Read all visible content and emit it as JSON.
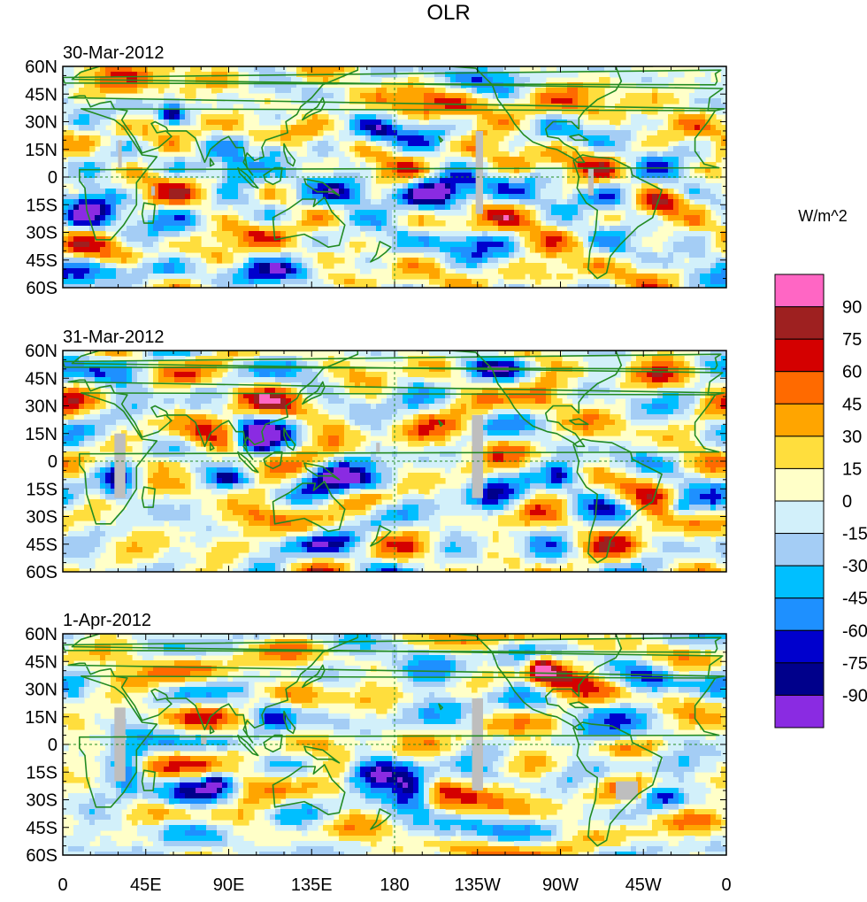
{
  "title": "OLR",
  "units_label": "W/m^2",
  "panels": [
    {
      "date": "30-Mar-2012",
      "seed": 11,
      "features": [
        {
          "lon": 205,
          "lat": -10,
          "value": -95,
          "rx": 18,
          "ry": 9
        },
        {
          "lon": 155,
          "lat": -8,
          "value": -80,
          "rx": 16,
          "ry": 7
        },
        {
          "lon": 95,
          "lat": 5,
          "value": -65,
          "rx": 14,
          "ry": 12
        },
        {
          "lon": 115,
          "lat": 15,
          "value": -80,
          "rx": 8,
          "ry": 6
        },
        {
          "lon": 60,
          "lat": 35,
          "value": -75,
          "rx": 6,
          "ry": 6
        },
        {
          "lon": 15,
          "lat": -15,
          "value": -60,
          "rx": 14,
          "ry": 14
        },
        {
          "lon": 300,
          "lat": -10,
          "value": -45,
          "rx": 12,
          "ry": 8
        },
        {
          "lon": 80,
          "lat": 10,
          "value": 35,
          "rx": 30,
          "ry": 6
        },
        {
          "lon": 230,
          "lat": 40,
          "value": 30,
          "rx": 30,
          "ry": 6
        },
        {
          "lon": 130,
          "lat": 40,
          "value": 30,
          "rx": 20,
          "ry": 6
        },
        {
          "lon": 250,
          "lat": -35,
          "value": 30,
          "rx": 20,
          "ry": 6
        },
        {
          "lon": 100,
          "lat": -30,
          "value": 30,
          "rx": 22,
          "ry": 6
        },
        {
          "lon": 325,
          "lat": -15,
          "value": 45,
          "rx": 10,
          "ry": 6
        },
        {
          "lon": 280,
          "lat": 30,
          "value": 30,
          "rx": 15,
          "ry": 10
        },
        {
          "lon": 40,
          "lat": 45,
          "value": 35,
          "rx": 18,
          "ry": 8
        },
        {
          "lon": 340,
          "lat": 45,
          "value": 40,
          "rx": 15,
          "ry": 7
        },
        {
          "lon": 170,
          "lat": 25,
          "value": -45,
          "rx": 10,
          "ry": 6
        },
        {
          "lon": 215,
          "lat": -35,
          "value": -45,
          "rx": 18,
          "ry": 6
        },
        {
          "lon": 130,
          "lat": -50,
          "value": -45,
          "rx": 25,
          "ry": 5
        },
        {
          "lon": 40,
          "lat": -50,
          "value": -45,
          "rx": 25,
          "ry": 5
        }
      ]
    },
    {
      "date": "31-Mar-2012",
      "seed": 23,
      "features": [
        {
          "lon": 150,
          "lat": -8,
          "value": -80,
          "rx": 14,
          "ry": 7
        },
        {
          "lon": 170,
          "lat": -12,
          "value": -75,
          "rx": 14,
          "ry": 6
        },
        {
          "lon": 105,
          "lat": 12,
          "value": -90,
          "rx": 10,
          "ry": 8
        },
        {
          "lon": 90,
          "lat": -10,
          "value": -60,
          "rx": 12,
          "ry": 5
        },
        {
          "lon": 30,
          "lat": -12,
          "value": -70,
          "rx": 10,
          "ry": 12
        },
        {
          "lon": 270,
          "lat": -8,
          "value": -70,
          "rx": 10,
          "ry": 7
        },
        {
          "lon": 235,
          "lat": -20,
          "value": -55,
          "rx": 15,
          "ry": 8
        },
        {
          "lon": 60,
          "lat": 0,
          "value": 35,
          "rx": 25,
          "ry": 5
        },
        {
          "lon": 95,
          "lat": 32,
          "value": 40,
          "rx": 25,
          "ry": 8
        },
        {
          "lon": 260,
          "lat": 35,
          "value": 45,
          "rx": 12,
          "ry": 10
        },
        {
          "lon": 100,
          "lat": -30,
          "value": 30,
          "rx": 25,
          "ry": 8
        },
        {
          "lon": 320,
          "lat": -35,
          "value": 35,
          "rx": 25,
          "ry": 8
        },
        {
          "lon": 200,
          "lat": 10,
          "value": 25,
          "rx": 25,
          "ry": 10
        },
        {
          "lon": 330,
          "lat": 45,
          "value": 35,
          "rx": 20,
          "ry": 6
        },
        {
          "lon": 140,
          "lat": -45,
          "value": -50,
          "rx": 20,
          "ry": 5
        },
        {
          "lon": 30,
          "lat": 50,
          "value": -40,
          "rx": 20,
          "ry": 7
        },
        {
          "lon": 230,
          "lat": 50,
          "value": -35,
          "rx": 20,
          "ry": 6
        },
        {
          "lon": 335,
          "lat": -25,
          "value": -60,
          "rx": 8,
          "ry": 6
        }
      ]
    },
    {
      "date": "1-Apr-2012",
      "seed": 37,
      "features": [
        {
          "lon": 260,
          "lat": 42,
          "value": 80,
          "rx": 8,
          "ry": 7
        },
        {
          "lon": 265,
          "lat": 38,
          "value": 55,
          "rx": 14,
          "ry": 10
        },
        {
          "lon": 170,
          "lat": -15,
          "value": -80,
          "rx": 18,
          "ry": 8
        },
        {
          "lon": 190,
          "lat": -25,
          "value": -80,
          "rx": 10,
          "ry": 10
        },
        {
          "lon": 35,
          "lat": -15,
          "value": -70,
          "rx": 10,
          "ry": 12
        },
        {
          "lon": 85,
          "lat": -20,
          "value": -65,
          "rx": 8,
          "ry": 6
        },
        {
          "lon": 115,
          "lat": 15,
          "value": -65,
          "rx": 10,
          "ry": 8
        },
        {
          "lon": 325,
          "lat": -28,
          "value": -70,
          "rx": 10,
          "ry": 5
        },
        {
          "lon": 210,
          "lat": 35,
          "value": -40,
          "rx": 30,
          "ry": 10
        },
        {
          "lon": 60,
          "lat": 40,
          "value": 35,
          "rx": 20,
          "ry": 8
        },
        {
          "lon": 130,
          "lat": 30,
          "value": 30,
          "rx": 20,
          "ry": 8
        },
        {
          "lon": 150,
          "lat": -12,
          "value": 40,
          "rx": 12,
          "ry": 6
        },
        {
          "lon": 100,
          "lat": -5,
          "value": 30,
          "rx": 20,
          "ry": 5
        },
        {
          "lon": 240,
          "lat": -25,
          "value": 30,
          "rx": 25,
          "ry": 8
        },
        {
          "lon": 330,
          "lat": -40,
          "value": 35,
          "rx": 20,
          "ry": 6
        },
        {
          "lon": 320,
          "lat": 35,
          "value": -45,
          "rx": 15,
          "ry": 8
        },
        {
          "lon": 60,
          "lat": -45,
          "value": -50,
          "rx": 25,
          "ry": 6
        },
        {
          "lon": 300,
          "lat": 5,
          "value": -45,
          "rx": 20,
          "ry": 5
        }
      ]
    }
  ],
  "lat_labels": [
    "60N",
    "45N",
    "30N",
    "15N",
    "0",
    "15S",
    "30S",
    "45S",
    "60S"
  ],
  "lat_values": [
    60,
    45,
    30,
    15,
    0,
    -15,
    -30,
    -45,
    -60
  ],
  "lon_labels": [
    "0",
    "45E",
    "90E",
    "135E",
    "180",
    "135W",
    "90W",
    "45W",
    "0"
  ],
  "lon_values": [
    0,
    45,
    90,
    135,
    180,
    225,
    270,
    315,
    360
  ],
  "colorbar": {
    "levels": [
      -90,
      -75,
      -60,
      -45,
      -30,
      -15,
      0,
      15,
      30,
      45,
      60,
      75,
      90
    ],
    "labels": [
      "-90",
      "-75",
      "-60",
      "-45",
      "-30",
      "-15",
      "0",
      "15",
      "30",
      "45",
      "60",
      "75",
      "90"
    ],
    "colors": [
      "#8a2be2",
      "#00008b",
      "#0000cd",
      "#1e90ff",
      "#00bfff",
      "#a4cdf5",
      "#d2f0fa",
      "#ffffc8",
      "#ffde3d",
      "#ffa500",
      "#ff6a00",
      "#d40000",
      "#9e2020",
      "#ff66c4"
    ]
  },
  "colors": {
    "coast": "#228b22",
    "missing": "#bebebe",
    "frame": "#000000"
  }
}
